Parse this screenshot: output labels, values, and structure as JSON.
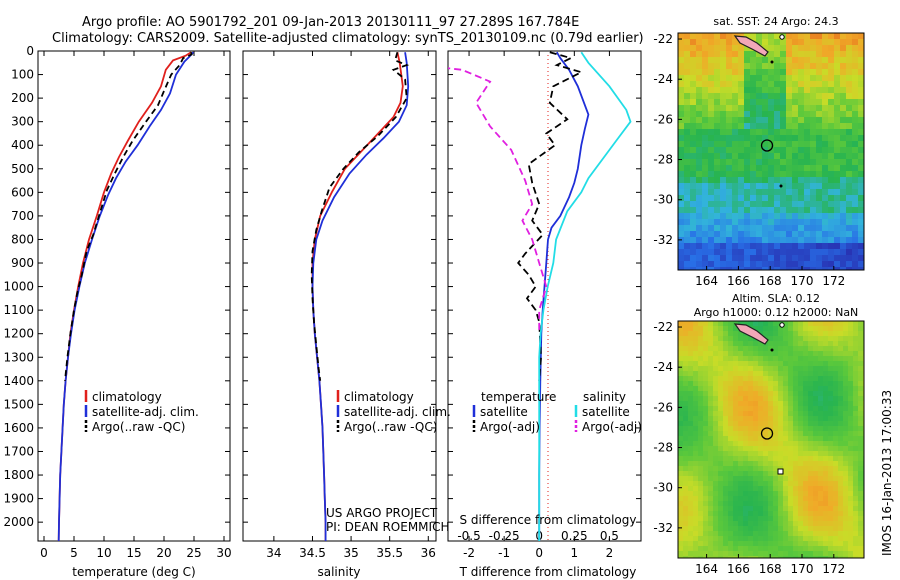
{
  "header": {
    "line1": "Argo profile: AO 5901792_201 09-Jan-2013 20130111_97 27.289S 167.784E",
    "line2": "Climatology: CARS2009. Satellite-adjusted climatology: synTS_20130109.nc (0.79d earlier)"
  },
  "colors": {
    "climatology": "#e0201c",
    "satellite": "#1f2fd8",
    "argo": "#000000",
    "salinity_sat": "#22dde6",
    "salinity_argo": "#e020e0"
  },
  "chart_data": [
    {
      "type": "line",
      "id": "temperature",
      "xlabel": "temperature (deg C)",
      "ylabel": "",
      "xlim": [
        -1,
        31
      ],
      "ylim": [
        2080,
        0
      ],
      "xticks": [
        0,
        5,
        10,
        15,
        20,
        25,
        30
      ],
      "yticks": [
        0,
        100,
        200,
        300,
        400,
        500,
        600,
        700,
        800,
        900,
        1000,
        1100,
        1200,
        1300,
        1400,
        1500,
        1600,
        1700,
        1800,
        1900,
        2000
      ],
      "legend": [
        "climatology",
        "satellite-adj. clim.",
        "Argo(..raw -QC)"
      ],
      "series": [
        {
          "name": "climatology",
          "color": "#e0201c",
          "dash": "",
          "points": [
            [
              24.5,
              5
            ],
            [
              23.6,
              20
            ],
            [
              21.5,
              40
            ],
            [
              20.3,
              80
            ],
            [
              19.5,
              150
            ],
            [
              18,
              220
            ],
            [
              15.8,
              300
            ],
            [
              14,
              380
            ],
            [
              12.5,
              450
            ],
            [
              11.2,
              520
            ],
            [
              10,
              600
            ],
            [
              8.8,
              700
            ],
            [
              7.5,
              800
            ],
            [
              6.5,
              900
            ],
            [
              5.7,
              1000
            ],
            [
              5,
              1100
            ],
            [
              4.4,
              1200
            ],
            [
              4,
              1300
            ],
            [
              3.6,
              1400
            ],
            [
              3.3,
              1500
            ],
            [
              3.1,
              1600
            ],
            [
              2.9,
              1700
            ],
            [
              2.7,
              1800
            ],
            [
              2.6,
              1900
            ],
            [
              2.5,
              2000
            ],
            [
              2.45,
              2080
            ]
          ]
        },
        {
          "name": "satellite-adj. clim.",
          "color": "#1f2fd8",
          "dash": "",
          "points": [
            [
              24.9,
              5
            ],
            [
              24.2,
              25
            ],
            [
              23.4,
              45
            ],
            [
              22,
              100
            ],
            [
              21,
              180
            ],
            [
              19.5,
              250
            ],
            [
              17.6,
              320
            ],
            [
              15.6,
              400
            ],
            [
              13.6,
              470
            ],
            [
              12,
              540
            ],
            [
              10.7,
              610
            ],
            [
              9.3,
              700
            ],
            [
              8,
              800
            ],
            [
              6.8,
              900
            ],
            [
              5.9,
              1000
            ],
            [
              5.1,
              1100
            ],
            [
              4.5,
              1200
            ],
            [
              4,
              1300
            ],
            [
              3.6,
              1400
            ],
            [
              3.3,
              1500
            ],
            [
              3.1,
              1600
            ],
            [
              2.9,
              1700
            ],
            [
              2.7,
              1800
            ],
            [
              2.6,
              1900
            ],
            [
              2.5,
              2000
            ],
            [
              2.45,
              2080
            ]
          ]
        },
        {
          "name": "Argo(..raw -QC)",
          "color": "#000000",
          "dash": "6,4",
          "points": [
            [
              24.5,
              5
            ],
            [
              24.6,
              15
            ],
            [
              23.2,
              30
            ],
            [
              22.6,
              60
            ],
            [
              21.2,
              100
            ],
            [
              20,
              170
            ],
            [
              19,
              230
            ],
            [
              17,
              300
            ],
            [
              14.8,
              380
            ],
            [
              13.2,
              450
            ],
            [
              11.8,
              520
            ],
            [
              10.5,
              590
            ],
            [
              9.4,
              680
            ],
            [
              8.2,
              780
            ],
            [
              7.1,
              850
            ],
            [
              6.3,
              950
            ],
            [
              5.6,
              1020
            ],
            [
              5,
              1100
            ],
            [
              4.4,
              1200
            ],
            [
              3.9,
              1300
            ],
            [
              3.5,
              1400
            ]
          ]
        }
      ]
    },
    {
      "type": "line",
      "id": "salinity",
      "xlabel": "salinity",
      "ylabel": "",
      "xlim": [
        33.6,
        36.1
      ],
      "ylim": [
        2080,
        0
      ],
      "xticks": [
        34,
        34.5,
        35,
        35.5,
        36
      ],
      "legend": [
        "climatology",
        "satellite-adj. clim.",
        "Argo(..raw -QC)"
      ],
      "annotation_lines": [
        "US ARGO PROJECT",
        "PI: DEAN ROEMMICH"
      ],
      "series": [
        {
          "name": "climatology",
          "color": "#e0201c",
          "dash": "",
          "points": [
            [
              35.6,
              5
            ],
            [
              35.63,
              50
            ],
            [
              35.67,
              150
            ],
            [
              35.64,
              220
            ],
            [
              35.55,
              280
            ],
            [
              35.35,
              350
            ],
            [
              35.15,
              420
            ],
            [
              34.92,
              500
            ],
            [
              34.75,
              600
            ],
            [
              34.6,
              700
            ],
            [
              34.53,
              800
            ],
            [
              34.5,
              900
            ],
            [
              34.5,
              1000
            ],
            [
              34.51,
              1100
            ],
            [
              34.53,
              1200
            ],
            [
              34.56,
              1300
            ],
            [
              34.59,
              1400
            ],
            [
              34.61,
              1500
            ],
            [
              34.63,
              1600
            ],
            [
              34.64,
              1700
            ],
            [
              34.65,
              1800
            ],
            [
              34.66,
              1900
            ],
            [
              34.67,
              2000
            ],
            [
              34.67,
              2080
            ]
          ]
        },
        {
          "name": "satellite-adj. clim.",
          "color": "#1f2fd8",
          "dash": "",
          "points": [
            [
              35.7,
              5
            ],
            [
              35.72,
              50
            ],
            [
              35.74,
              150
            ],
            [
              35.72,
              230
            ],
            [
              35.62,
              300
            ],
            [
              35.42,
              370
            ],
            [
              35.2,
              440
            ],
            [
              34.98,
              520
            ],
            [
              34.78,
              620
            ],
            [
              34.63,
              720
            ],
            [
              34.55,
              800
            ],
            [
              34.51,
              900
            ],
            [
              34.5,
              1000
            ],
            [
              34.51,
              1100
            ],
            [
              34.53,
              1200
            ],
            [
              34.56,
              1300
            ],
            [
              34.59,
              1400
            ],
            [
              34.61,
              1500
            ],
            [
              34.63,
              1600
            ],
            [
              34.64,
              1700
            ],
            [
              34.65,
              1800
            ],
            [
              34.66,
              1900
            ],
            [
              34.67,
              2000
            ],
            [
              34.67,
              2080
            ]
          ]
        },
        {
          "name": "Argo(..raw -QC)",
          "color": "#000000",
          "dash": "6,4",
          "points": [
            [
              35.6,
              5
            ],
            [
              35.57,
              40
            ],
            [
              35.72,
              60
            ],
            [
              35.55,
              80
            ],
            [
              35.7,
              120
            ],
            [
              35.72,
              200
            ],
            [
              35.58,
              280
            ],
            [
              35.35,
              360
            ],
            [
              35.1,
              430
            ],
            [
              34.9,
              500
            ],
            [
              34.72,
              580
            ],
            [
              34.62,
              680
            ],
            [
              34.55,
              760
            ],
            [
              34.5,
              850
            ],
            [
              34.49,
              950
            ],
            [
              34.5,
              1050
            ],
            [
              34.52,
              1150
            ],
            [
              34.55,
              1250
            ],
            [
              34.58,
              1350
            ],
            [
              34.6,
              1400
            ]
          ]
        }
      ]
    },
    {
      "type": "line",
      "id": "difference",
      "xlabel": "T difference from climatology",
      "xlabel_top": "S difference from climatology",
      "xlim": [
        -2.6,
        2.9
      ],
      "ylim": [
        2080,
        0
      ],
      "xticks": [
        -2,
        -1,
        0,
        1,
        2
      ],
      "xticks_top": [
        -0.5,
        -0.25,
        0,
        0.25,
        0.5
      ],
      "xticklabels_top": [
        "-0.5",
        "-0.25",
        "0",
        "0.25",
        "0.5"
      ],
      "legend_title_t": "temperature",
      "legend_title_s": "salinity",
      "legend": [
        "satellite",
        "Argo(-adj)",
        "satellite",
        "Argo(-adj)"
      ],
      "series": [
        {
          "name": "satellite",
          "group": "temperature",
          "color": "#1f2fd8",
          "dash": "",
          "points": [
            [
              0.5,
              5
            ],
            [
              0.6,
              30
            ],
            [
              0.85,
              80
            ],
            [
              1.1,
              150
            ],
            [
              1.4,
              270
            ],
            [
              1.3,
              330
            ],
            [
              1.2,
              400
            ],
            [
              1.1,
              500
            ],
            [
              1,
              560
            ],
            [
              0.85,
              620
            ],
            [
              0.6,
              700
            ],
            [
              0.35,
              750
            ],
            [
              0.25,
              800
            ],
            [
              0.2,
              900
            ],
            [
              0.15,
              1000
            ],
            [
              0.1,
              1100
            ],
            [
              0.06,
              1200
            ],
            [
              0.03,
              1400
            ],
            [
              0.01,
              1600
            ],
            [
              0,
              1800
            ],
            [
              0,
              2080
            ]
          ]
        },
        {
          "name": "Argo(-adj)",
          "group": "temperature",
          "color": "#000000",
          "dash": "7,4",
          "points": [
            [
              0.3,
              5
            ],
            [
              0.9,
              30
            ],
            [
              0.5,
              60
            ],
            [
              1.2,
              90
            ],
            [
              0.4,
              150
            ],
            [
              0.3,
              220
            ],
            [
              0.8,
              290
            ],
            [
              0.2,
              350
            ],
            [
              0.45,
              400
            ],
            [
              -0.3,
              480
            ],
            [
              -0.2,
              560
            ],
            [
              0,
              650
            ],
            [
              -0.2,
              720
            ],
            [
              0.1,
              780
            ],
            [
              -0.4,
              860
            ],
            [
              -0.6,
              900
            ],
            [
              -0.3,
              950
            ],
            [
              -0.1,
              1000
            ],
            [
              -0.35,
              1050
            ],
            [
              -0.1,
              1100
            ],
            [
              0,
              1150
            ],
            [
              0.05,
              1300
            ],
            [
              0,
              1400
            ]
          ]
        },
        {
          "name": "satellite",
          "group": "salinity",
          "color": "#22dde6",
          "dash": "",
          "points": [
            [
              0.3,
              5
            ],
            [
              0.35,
              50
            ],
            [
              0.5,
              150
            ],
            [
              0.62,
              250
            ],
            [
              0.65,
              300
            ],
            [
              0.55,
              380
            ],
            [
              0.45,
              460
            ],
            [
              0.35,
              540
            ],
            [
              0.3,
              600
            ],
            [
              0.2,
              680
            ],
            [
              0.12,
              800
            ],
            [
              0.1,
              900
            ],
            [
              0.06,
              1000
            ],
            [
              0.03,
              1100
            ],
            [
              0.01,
              1200
            ],
            [
              0,
              1300
            ],
            [
              0,
              2080
            ]
          ]
        },
        {
          "name": "Argo(-adj)",
          "group": "salinity",
          "color": "#e020e0",
          "dash": "7,4",
          "points": [
            [
              -0.7,
              5
            ],
            [
              -1,
              50
            ],
            [
              -0.55,
              80
            ],
            [
              -0.35,
              130
            ],
            [
              -0.45,
              220
            ],
            [
              -0.35,
              320
            ],
            [
              -0.2,
              420
            ],
            [
              -0.1,
              550
            ],
            [
              -0.05,
              650
            ],
            [
              -0.12,
              720
            ],
            [
              -0.05,
              800
            ],
            [
              0,
              900
            ],
            [
              0.05,
              1000
            ],
            [
              0,
              1100
            ],
            [
              0,
              1200
            ]
          ]
        }
      ]
    },
    {
      "type": "heatmap",
      "id": "sst_map",
      "title": "sat. SST: 24 Argo: 24.3",
      "xlim": [
        162.2,
        173.9
      ],
      "ylim": [
        -33.5,
        -21.7
      ],
      "xticks": [
        164,
        166,
        168,
        170,
        172
      ],
      "yticks": [
        -22,
        -24,
        -26,
        -28,
        -30,
        -32
      ],
      "argo_position": [
        167.8,
        -27.3
      ]
    },
    {
      "type": "heatmap",
      "id": "sla_map",
      "title_lines": [
        "Altim. SLA: 0.12",
        "Argo h1000: 0.12 h2000: NaN"
      ],
      "xlim": [
        162.2,
        173.9
      ],
      "ylim": [
        -33.5,
        -21.7
      ],
      "xticks": [
        164,
        166,
        168,
        170,
        172
      ],
      "yticks": [
        -22,
        -24,
        -26,
        -28,
        -30,
        -32
      ],
      "argo_position": [
        167.8,
        -27.3
      ]
    }
  ],
  "footer": {
    "stamp": "IMOS 16-Jan-2013 17:00:33"
  }
}
